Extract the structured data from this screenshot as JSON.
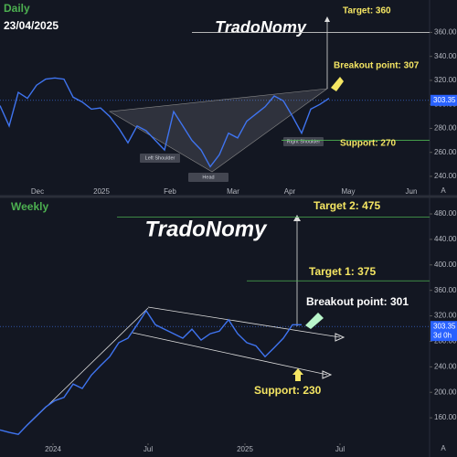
{
  "chart_data": [
    {
      "type": "line",
      "title": "Daily",
      "subtitle": "23/04/2025",
      "watermark": "TradoNomy",
      "scale_mode": "A",
      "color": "#3f74f0",
      "xlim": [
        0,
        47
      ],
      "ylim": [
        227,
        387
      ],
      "xticks": [
        {
          "value": 4.1,
          "label": "Dec"
        },
        {
          "value": 11.1,
          "label": "2025"
        },
        {
          "value": 18.6,
          "label": "Feb"
        },
        {
          "value": 25.5,
          "label": "Mar"
        },
        {
          "value": 31.7,
          "label": "Apr"
        },
        {
          "value": 38.1,
          "label": "May"
        },
        {
          "value": 45,
          "label": "Jun"
        }
      ],
      "yticks": [
        {
          "value": 240,
          "label": "240.00"
        },
        {
          "value": 260,
          "label": "260.00"
        },
        {
          "value": 280,
          "label": "280.00"
        },
        {
          "value": 300,
          "label": "300.00"
        },
        {
          "value": 320,
          "label": "320.00"
        },
        {
          "value": 340,
          "label": "340.00"
        },
        {
          "value": 360,
          "label": "360.00"
        }
      ],
      "values": [
        299,
        282,
        310,
        305,
        316,
        321,
        322,
        321,
        306,
        302,
        296,
        297,
        290,
        280,
        268,
        282,
        278,
        270,
        262,
        294,
        282,
        270,
        262,
        248,
        258,
        276,
        272,
        286,
        292,
        298,
        307,
        303,
        290,
        276,
        296,
        300,
        305
      ],
      "last_price": 303.35,
      "levels": [
        {
          "label": "Target: 360",
          "value": 360
        },
        {
          "label": "Breakout point: 307",
          "value": 307
        },
        {
          "label": "Support: 270",
          "value": 270
        }
      ],
      "pattern_labels": [
        "Left Shoulder",
        "Head",
        "Right Shoulder"
      ]
    },
    {
      "type": "line",
      "title": "Weekly",
      "watermark": "TradoNomy",
      "scale_mode": "A",
      "color": "#3f74f0",
      "xlim": [
        0,
        47
      ],
      "ylim": [
        120,
        503
      ],
      "xticks": [
        {
          "value": 5.8,
          "label": "2024"
        },
        {
          "value": 16.2,
          "label": "Jul"
        },
        {
          "value": 26.8,
          "label": "2025"
        },
        {
          "value": 37.2,
          "label": "Jul"
        }
      ],
      "yticks": [
        {
          "value": 160,
          "label": "160.00"
        },
        {
          "value": 200,
          "label": "200.00"
        },
        {
          "value": 240,
          "label": "240.00"
        },
        {
          "value": 280,
          "label": "280.00"
        },
        {
          "value": 320,
          "label": "320.00"
        },
        {
          "value": 360,
          "label": "360.00"
        },
        {
          "value": 400,
          "label": "400.00"
        },
        {
          "value": 440,
          "label": "440.00"
        },
        {
          "value": 480,
          "label": "480.00"
        }
      ],
      "values": [
        141,
        137,
        134,
        149,
        163,
        177,
        187,
        192,
        213,
        206,
        227,
        242,
        256,
        278,
        285,
        306,
        328,
        306,
        299,
        292,
        285,
        299,
        282,
        292,
        296,
        314,
        292,
        278,
        273,
        256,
        270,
        285,
        306,
        306
      ],
      "last_price": 303.35,
      "countdown": "3d 0h",
      "levels": [
        {
          "label": "Target 2: 475",
          "value": 475
        },
        {
          "label": "Target 1: 375",
          "value": 375
        },
        {
          "label": "Breakout point: 301",
          "value": 301
        },
        {
          "label": "Support: 230",
          "value": 230
        }
      ]
    }
  ]
}
